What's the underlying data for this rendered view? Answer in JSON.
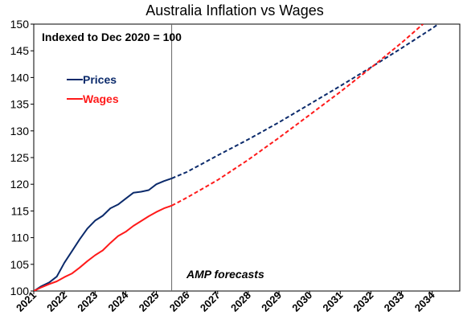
{
  "chart_data": {
    "type": "line",
    "title": "Australia Inflation vs Wages",
    "annotation": "Indexed to Dec 2020 = 100",
    "forecast_label": "AMP forecasts",
    "forecast_start": 2025.5,
    "xlim": [
      2021,
      2034.9
    ],
    "ylim": [
      100,
      150
    ],
    "x_ticks": [
      2021,
      2022,
      2023,
      2024,
      2025,
      2026,
      2027,
      2028,
      2029,
      2030,
      2031,
      2032,
      2033,
      2034
    ],
    "y_ticks": [
      100,
      105,
      110,
      115,
      120,
      125,
      130,
      135,
      140,
      145,
      150
    ],
    "legend_position": "upper-left",
    "series": [
      {
        "name": "Prices",
        "color": "#0b2a6b",
        "actual": [
          [
            2021.0,
            100.0
          ],
          [
            2021.25,
            100.9
          ],
          [
            2021.5,
            101.6
          ],
          [
            2021.75,
            102.7
          ],
          [
            2022.0,
            105.3
          ],
          [
            2022.25,
            107.5
          ],
          [
            2022.5,
            109.7
          ],
          [
            2022.75,
            111.7
          ],
          [
            2023.0,
            113.2
          ],
          [
            2023.25,
            114.1
          ],
          [
            2023.5,
            115.5
          ],
          [
            2023.75,
            116.2
          ],
          [
            2024.0,
            117.3
          ],
          [
            2024.25,
            118.4
          ],
          [
            2024.5,
            118.6
          ],
          [
            2024.75,
            118.9
          ],
          [
            2025.0,
            120.0
          ],
          [
            2025.25,
            120.6
          ],
          [
            2025.5,
            121.1
          ]
        ],
        "forecast": [
          [
            2025.5,
            121.1
          ],
          [
            2026.0,
            122.3
          ],
          [
            2027.0,
            125.4
          ],
          [
            2028.0,
            128.4
          ],
          [
            2029.0,
            131.6
          ],
          [
            2030.0,
            135.0
          ],
          [
            2031.0,
            138.4
          ],
          [
            2032.0,
            141.9
          ],
          [
            2033.0,
            145.5
          ],
          [
            2034.0,
            149.2
          ],
          [
            2034.2,
            150.0
          ]
        ]
      },
      {
        "name": "Wages",
        "color": "#ff1a1a",
        "actual": [
          [
            2021.0,
            100.0
          ],
          [
            2021.25,
            100.7
          ],
          [
            2021.5,
            101.3
          ],
          [
            2021.75,
            101.8
          ],
          [
            2022.0,
            102.6
          ],
          [
            2022.25,
            103.3
          ],
          [
            2022.5,
            104.4
          ],
          [
            2022.75,
            105.6
          ],
          [
            2023.0,
            106.7
          ],
          [
            2023.25,
            107.6
          ],
          [
            2023.5,
            109.0
          ],
          [
            2023.75,
            110.3
          ],
          [
            2024.0,
            111.1
          ],
          [
            2024.25,
            112.2
          ],
          [
            2024.5,
            113.1
          ],
          [
            2024.75,
            114.0
          ],
          [
            2025.0,
            114.8
          ],
          [
            2025.25,
            115.5
          ],
          [
            2025.5,
            116.0
          ]
        ],
        "forecast": [
          [
            2025.5,
            116.0
          ],
          [
            2026.0,
            117.5
          ],
          [
            2027.0,
            120.8
          ],
          [
            2028.0,
            124.6
          ],
          [
            2029.0,
            128.7
          ],
          [
            2030.0,
            133.0
          ],
          [
            2031.0,
            137.3
          ],
          [
            2032.0,
            141.8
          ],
          [
            2033.0,
            146.5
          ],
          [
            2033.7,
            150.0
          ]
        ]
      }
    ]
  }
}
